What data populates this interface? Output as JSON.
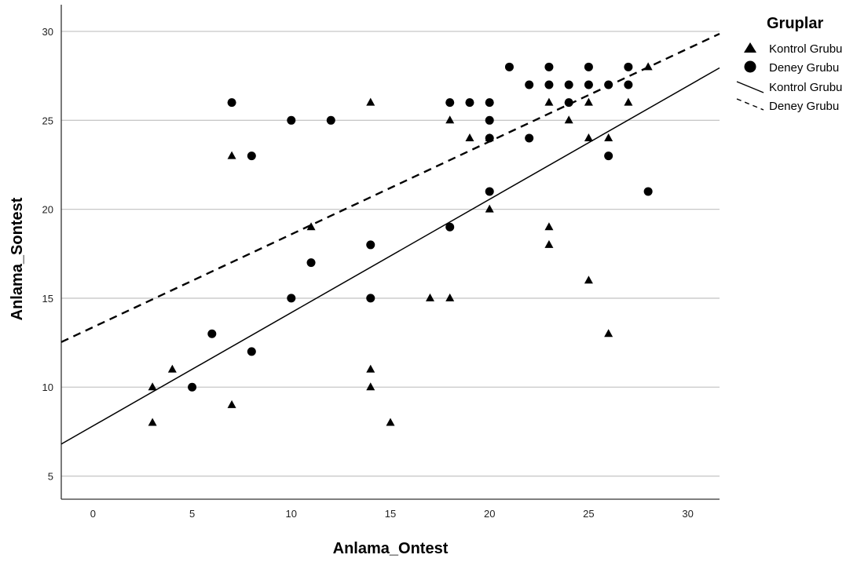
{
  "chart_data": {
    "type": "scatter",
    "xlabel": "Anlama_Ontest",
    "ylabel": "Anlama_Sontest",
    "xlim": [
      -1.6,
      31.6
    ],
    "ylim": [
      3.7,
      31.5
    ],
    "x_ticks": [
      0,
      5,
      10,
      15,
      20,
      25,
      30
    ],
    "y_ticks": [
      5,
      10,
      15,
      20,
      25,
      30
    ],
    "grid": "horizontal",
    "legend_position": "right",
    "legend_title": "Gruplar",
    "series": [
      {
        "name": "Kontrol Grubu",
        "marker": "triangle",
        "color": "#000000",
        "points": [
          [
            3,
            10
          ],
          [
            3,
            8
          ],
          [
            4,
            11
          ],
          [
            7,
            23
          ],
          [
            7,
            9
          ],
          [
            11,
            19
          ],
          [
            14,
            26
          ],
          [
            14,
            11
          ],
          [
            14,
            10
          ],
          [
            15,
            8
          ],
          [
            17,
            15
          ],
          [
            18,
            15
          ],
          [
            18,
            25
          ],
          [
            19,
            24
          ],
          [
            20,
            24
          ],
          [
            20,
            20
          ],
          [
            23,
            26
          ],
          [
            23,
            19
          ],
          [
            23,
            18
          ],
          [
            24,
            25
          ],
          [
            25,
            26
          ],
          [
            25,
            24
          ],
          [
            25,
            16
          ],
          [
            26,
            24
          ],
          [
            26,
            13
          ],
          [
            27,
            26
          ],
          [
            28,
            28
          ]
        ]
      },
      {
        "name": "Deney Grubu",
        "marker": "circle",
        "color": "#000000",
        "points": [
          [
            5,
            10
          ],
          [
            6,
            13
          ],
          [
            7,
            26
          ],
          [
            8,
            23
          ],
          [
            8,
            12
          ],
          [
            10,
            25
          ],
          [
            10,
            15
          ],
          [
            11,
            17
          ],
          [
            12,
            25
          ],
          [
            14,
            18
          ],
          [
            14,
            15
          ],
          [
            18,
            26
          ],
          [
            18,
            19
          ],
          [
            19,
            26
          ],
          [
            20,
            26
          ],
          [
            20,
            25
          ],
          [
            20,
            24
          ],
          [
            20,
            21
          ],
          [
            21,
            28
          ],
          [
            22,
            27
          ],
          [
            22,
            24
          ],
          [
            23,
            28
          ],
          [
            23,
            27
          ],
          [
            24,
            27
          ],
          [
            24,
            26
          ],
          [
            25,
            28
          ],
          [
            25,
            27
          ],
          [
            26,
            27
          ],
          [
            26,
            23
          ],
          [
            27,
            28
          ],
          [
            27,
            27
          ],
          [
            28,
            21
          ]
        ]
      }
    ],
    "fit_lines": [
      {
        "name": "Kontrol Grubu",
        "style": "solid",
        "intercept": 7.82,
        "slope": 0.637
      },
      {
        "name": "Deney Grubu",
        "style": "dashed",
        "intercept": 13.37,
        "slope": 0.522
      }
    ]
  }
}
